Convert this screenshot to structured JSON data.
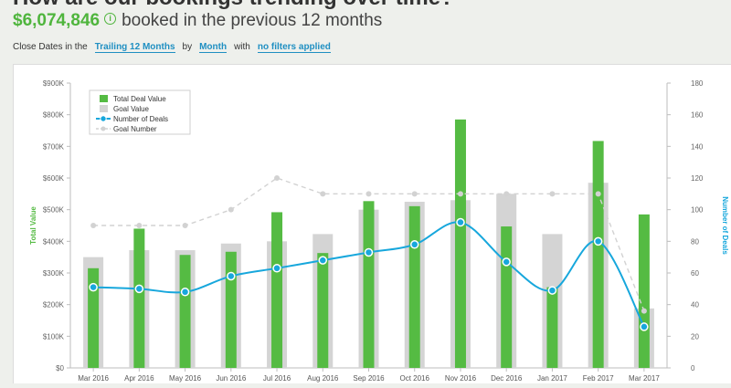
{
  "header": {
    "title": "How are our bookings trending over time?",
    "amount": "$6,074,846",
    "info_symbol": "i",
    "subtitle": "booked in the previous 12 months"
  },
  "filters": {
    "prefix": "Close Dates in the",
    "range": "Trailing 12 Months",
    "by": "by",
    "period": "Month",
    "with": "with",
    "filter": "no filters applied"
  },
  "colors": {
    "deal_bar": "#55bb43",
    "goal_bar": "#d4d4d4",
    "deals_line": "#17a7dc",
    "goal_line": "#d2d2d2",
    "left_axis_label": "#55bb43",
    "right_axis_label": "#17a7dc"
  },
  "chart_data": {
    "type": "bar",
    "categories": [
      "Mar 2016",
      "Apr 2016",
      "May 2016",
      "Jun 2016",
      "Jul 2016",
      "Aug 2016",
      "Sep 2016",
      "Oct 2016",
      "Nov 2016",
      "Dec 2016",
      "Jan 2017",
      "Feb 2017",
      "Mar 2017"
    ],
    "series": [
      {
        "name": "Total Deal Value",
        "type": "bar",
        "axis": "left",
        "values": [
          315000,
          440000,
          357000,
          367000,
          492000,
          363000,
          527000,
          511000,
          785000,
          447000,
          255000,
          717000,
          485000
        ]
      },
      {
        "name": "Goal Value",
        "type": "bar",
        "axis": "left",
        "values": [
          350000,
          372000,
          372000,
          393000,
          400000,
          423000,
          500000,
          525000,
          530000,
          550000,
          423000,
          585000,
          188000
        ]
      },
      {
        "name": "Number of Deals",
        "type": "line",
        "axis": "right",
        "values": [
          51,
          50,
          48,
          58,
          63,
          68,
          73,
          78,
          92,
          67,
          49,
          80,
          26
        ]
      },
      {
        "name": "Goal Number",
        "type": "line",
        "axis": "right",
        "values": [
          90,
          90,
          90,
          100,
          120,
          110,
          110,
          110,
          110,
          110,
          110,
          110,
          36
        ]
      }
    ],
    "ylabel": "Total Value",
    "y2label": "Number of Deals",
    "ylim": [
      0,
      900000
    ],
    "y2lim": [
      0,
      180
    ],
    "yticks": [
      {
        "value": 0,
        "label": "$0"
      },
      {
        "value": 100000,
        "label": "$100K"
      },
      {
        "value": 200000,
        "label": "$200K"
      },
      {
        "value": 300000,
        "label": "$300K"
      },
      {
        "value": 400000,
        "label": "$400K"
      },
      {
        "value": 500000,
        "label": "$500K"
      },
      {
        "value": 600000,
        "label": "$600K"
      },
      {
        "value": 700000,
        "label": "$700K"
      },
      {
        "value": 800000,
        "label": "$800K"
      },
      {
        "value": 900000,
        "label": "$900K"
      }
    ],
    "y2ticks": [
      {
        "value": 0,
        "label": "0"
      },
      {
        "value": 20,
        "label": "20"
      },
      {
        "value": 40,
        "label": "40"
      },
      {
        "value": 60,
        "label": "60"
      },
      {
        "value": 80,
        "label": "80"
      },
      {
        "value": 100,
        "label": "100"
      },
      {
        "value": 120,
        "label": "120"
      },
      {
        "value": 140,
        "label": "140"
      },
      {
        "value": 160,
        "label": "160"
      },
      {
        "value": 180,
        "label": "180"
      }
    ],
    "legend_position": "top-left",
    "grid": false
  }
}
